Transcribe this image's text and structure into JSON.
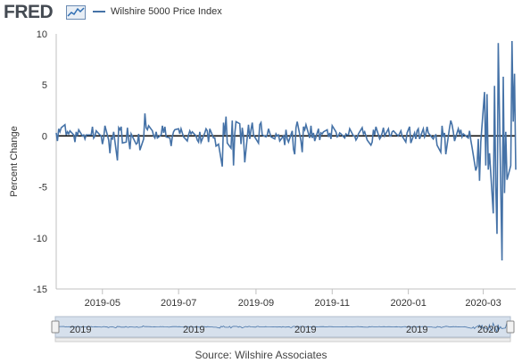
{
  "header": {
    "logo_text": "FRED",
    "logo_icon": "fred-chart-icon",
    "legend_label": "Wilshire 5000 Price Index",
    "legend_color": "#4572a7"
  },
  "source_label": "Source: Wilshire Associates",
  "chart_data": {
    "type": "line",
    "ylabel": "Percent Change",
    "ylim": [
      -15,
      10
    ],
    "y_ticks": [
      10,
      5,
      0,
      -5,
      -10,
      -15
    ],
    "x_start": "2019-03-25",
    "x_end": "2020-03-27",
    "x_ticks": [
      {
        "date": "2019-05-01",
        "label": "2019-05"
      },
      {
        "date": "2019-07-01",
        "label": "2019-07"
      },
      {
        "date": "2019-09-01",
        "label": "2019-09"
      },
      {
        "date": "2019-11-01",
        "label": "2019-11"
      },
      {
        "date": "2020-01-01",
        "label": "2020-01"
      },
      {
        "date": "2020-03-01",
        "label": "2020-03"
      }
    ],
    "navigator_labels": [
      "2019",
      "2019",
      "2019",
      "2019",
      "2020"
    ],
    "series": [
      {
        "color": "#4572a7",
        "points": [
          [
            "2019-03-25",
            0.3
          ],
          [
            "2019-03-26",
            -0.5
          ],
          [
            "2019-03-27",
            0.7
          ],
          [
            "2019-03-28",
            0.4
          ],
          [
            "2019-03-29",
            0.8
          ],
          [
            "2019-04-01",
            1.1
          ],
          [
            "2019-04-02",
            0.1
          ],
          [
            "2019-04-03",
            0.4
          ],
          [
            "2019-04-04",
            0.2
          ],
          [
            "2019-04-05",
            0.5
          ],
          [
            "2019-04-08",
            0.1
          ],
          [
            "2019-04-09",
            -0.6
          ],
          [
            "2019-04-10",
            0.4
          ],
          [
            "2019-04-11",
            0.0
          ],
          [
            "2019-04-12",
            0.6
          ],
          [
            "2019-04-15",
            0.0
          ],
          [
            "2019-04-16",
            0.1
          ],
          [
            "2019-04-17",
            -0.3
          ],
          [
            "2019-04-18",
            0.1
          ],
          [
            "2019-04-22",
            0.1
          ],
          [
            "2019-04-23",
            0.9
          ],
          [
            "2019-04-24",
            -0.2
          ],
          [
            "2019-04-25",
            0.0
          ],
          [
            "2019-04-26",
            0.5
          ],
          [
            "2019-04-29",
            0.1
          ],
          [
            "2019-04-30",
            0.0
          ],
          [
            "2019-05-01",
            -0.8
          ],
          [
            "2019-05-02",
            -0.2
          ],
          [
            "2019-05-03",
            1.0
          ],
          [
            "2019-05-06",
            -0.4
          ],
          [
            "2019-05-07",
            -1.7
          ],
          [
            "2019-05-08",
            -0.2
          ],
          [
            "2019-05-09",
            -0.3
          ],
          [
            "2019-05-10",
            0.4
          ],
          [
            "2019-05-13",
            -2.4
          ],
          [
            "2019-05-14",
            0.8
          ],
          [
            "2019-05-15",
            0.6
          ],
          [
            "2019-05-16",
            0.9
          ],
          [
            "2019-05-17",
            -0.7
          ],
          [
            "2019-05-20",
            -0.6
          ],
          [
            "2019-05-21",
            0.8
          ],
          [
            "2019-05-22",
            -0.4
          ],
          [
            "2019-05-23",
            -1.3
          ],
          [
            "2019-05-24",
            0.2
          ],
          [
            "2019-05-28",
            -0.8
          ],
          [
            "2019-05-29",
            -0.7
          ],
          [
            "2019-05-30",
            0.2
          ],
          [
            "2019-05-31",
            -1.4
          ],
          [
            "2019-06-03",
            -0.3
          ],
          [
            "2019-06-04",
            2.2
          ],
          [
            "2019-06-05",
            0.8
          ],
          [
            "2019-06-06",
            0.6
          ],
          [
            "2019-06-07",
            1.0
          ],
          [
            "2019-06-10",
            0.5
          ],
          [
            "2019-06-11",
            0.0
          ],
          [
            "2019-06-12",
            -0.2
          ],
          [
            "2019-06-13",
            0.4
          ],
          [
            "2019-06-14",
            -0.2
          ],
          [
            "2019-06-17",
            0.1
          ],
          [
            "2019-06-18",
            1.0
          ],
          [
            "2019-06-19",
            0.3
          ],
          [
            "2019-06-20",
            0.9
          ],
          [
            "2019-06-21",
            -0.1
          ],
          [
            "2019-06-24",
            -0.2
          ],
          [
            "2019-06-25",
            -1.0
          ],
          [
            "2019-06-26",
            -0.1
          ],
          [
            "2019-06-27",
            0.4
          ],
          [
            "2019-06-28",
            0.6
          ],
          [
            "2019-07-01",
            0.7
          ],
          [
            "2019-07-02",
            0.2
          ],
          [
            "2019-07-03",
            0.7
          ],
          [
            "2019-07-05",
            -0.1
          ],
          [
            "2019-07-08",
            -0.5
          ],
          [
            "2019-07-09",
            0.1
          ],
          [
            "2019-07-10",
            0.5
          ],
          [
            "2019-07-11",
            0.2
          ],
          [
            "2019-07-12",
            0.4
          ],
          [
            "2019-07-15",
            0.0
          ],
          [
            "2019-07-16",
            -0.4
          ],
          [
            "2019-07-17",
            -0.6
          ],
          [
            "2019-07-18",
            0.4
          ],
          [
            "2019-07-19",
            -0.6
          ],
          [
            "2019-07-22",
            0.3
          ],
          [
            "2019-07-23",
            0.7
          ],
          [
            "2019-07-24",
            0.5
          ],
          [
            "2019-07-25",
            -0.6
          ],
          [
            "2019-07-26",
            0.7
          ],
          [
            "2019-07-29",
            -0.2
          ],
          [
            "2019-07-30",
            -0.2
          ],
          [
            "2019-07-31",
            -1.0
          ],
          [
            "2019-08-01",
            -0.9
          ],
          [
            "2019-08-02",
            -0.8
          ],
          [
            "2019-08-05",
            -3.0
          ],
          [
            "2019-08-06",
            1.3
          ],
          [
            "2019-08-07",
            0.1
          ],
          [
            "2019-08-08",
            1.9
          ],
          [
            "2019-08-09",
            -0.7
          ],
          [
            "2019-08-12",
            -1.2
          ],
          [
            "2019-08-13",
            1.5
          ],
          [
            "2019-08-14",
            -2.9
          ],
          [
            "2019-08-15",
            0.2
          ],
          [
            "2019-08-16",
            1.4
          ],
          [
            "2019-08-19",
            1.2
          ],
          [
            "2019-08-20",
            -0.8
          ],
          [
            "2019-08-21",
            0.8
          ],
          [
            "2019-08-22",
            -0.1
          ],
          [
            "2019-08-23",
            -2.6
          ],
          [
            "2019-08-26",
            1.1
          ],
          [
            "2019-08-27",
            -0.3
          ],
          [
            "2019-08-28",
            0.6
          ],
          [
            "2019-08-29",
            1.3
          ],
          [
            "2019-08-30",
            0.1
          ],
          [
            "2019-09-03",
            -0.7
          ],
          [
            "2019-09-04",
            1.1
          ],
          [
            "2019-09-05",
            1.3
          ],
          [
            "2019-09-06",
            0.1
          ],
          [
            "2019-09-09",
            -0.1
          ],
          [
            "2019-09-10",
            0.1
          ],
          [
            "2019-09-11",
            0.7
          ],
          [
            "2019-09-12",
            0.3
          ],
          [
            "2019-09-13",
            -0.1
          ],
          [
            "2019-09-16",
            -0.3
          ],
          [
            "2019-09-17",
            0.2
          ],
          [
            "2019-09-18",
            0.0
          ],
          [
            "2019-09-19",
            0.1
          ],
          [
            "2019-09-20",
            -0.5
          ],
          [
            "2019-09-23",
            0.0
          ],
          [
            "2019-09-24",
            -0.9
          ],
          [
            "2019-09-25",
            0.6
          ],
          [
            "2019-09-26",
            -0.3
          ],
          [
            "2019-09-27",
            -0.6
          ],
          [
            "2019-09-30",
            0.5
          ],
          [
            "2019-10-01",
            -1.3
          ],
          [
            "2019-10-02",
            -1.8
          ],
          [
            "2019-10-03",
            0.8
          ],
          [
            "2019-10-04",
            1.4
          ],
          [
            "2019-10-07",
            -0.5
          ],
          [
            "2019-10-08",
            -1.6
          ],
          [
            "2019-10-09",
            0.9
          ],
          [
            "2019-10-10",
            0.6
          ],
          [
            "2019-10-11",
            1.1
          ],
          [
            "2019-10-14",
            -0.2
          ],
          [
            "2019-10-15",
            1.0
          ],
          [
            "2019-10-16",
            -0.2
          ],
          [
            "2019-10-17",
            0.3
          ],
          [
            "2019-10-18",
            -0.5
          ],
          [
            "2019-10-21",
            0.7
          ],
          [
            "2019-10-22",
            -0.4
          ],
          [
            "2019-10-23",
            0.3
          ],
          [
            "2019-10-24",
            0.2
          ],
          [
            "2019-10-25",
            0.4
          ],
          [
            "2019-10-28",
            0.6
          ],
          [
            "2019-10-29",
            -0.1
          ],
          [
            "2019-10-30",
            0.3
          ],
          [
            "2019-10-31",
            -0.3
          ],
          [
            "2019-11-01",
            1.0
          ],
          [
            "2019-11-04",
            0.4
          ],
          [
            "2019-11-05",
            -0.1
          ],
          [
            "2019-11-06",
            0.0
          ],
          [
            "2019-11-07",
            0.3
          ],
          [
            "2019-11-08",
            0.2
          ],
          [
            "2019-11-11",
            -0.2
          ],
          [
            "2019-11-12",
            0.2
          ],
          [
            "2019-11-13",
            0.1
          ],
          [
            "2019-11-14",
            0.1
          ],
          [
            "2019-11-15",
            0.7
          ],
          [
            "2019-11-18",
            0.0
          ],
          [
            "2019-11-19",
            0.0
          ],
          [
            "2019-11-20",
            -0.4
          ],
          [
            "2019-11-21",
            -0.2
          ],
          [
            "2019-11-22",
            0.2
          ],
          [
            "2019-11-25",
            0.8
          ],
          [
            "2019-11-26",
            0.2
          ],
          [
            "2019-11-27",
            0.4
          ],
          [
            "2019-11-29",
            -0.4
          ],
          [
            "2019-12-02",
            -0.9
          ],
          [
            "2019-12-03",
            -0.6
          ],
          [
            "2019-12-04",
            0.6
          ],
          [
            "2019-12-05",
            0.1
          ],
          [
            "2019-12-06",
            0.9
          ],
          [
            "2019-12-09",
            -0.3
          ],
          [
            "2019-12-10",
            -0.1
          ],
          [
            "2019-12-11",
            0.3
          ],
          [
            "2019-12-12",
            0.8
          ],
          [
            "2019-12-13",
            0.0
          ],
          [
            "2019-12-16",
            0.7
          ],
          [
            "2019-12-17",
            0.0
          ],
          [
            "2019-12-18",
            0.0
          ],
          [
            "2019-12-19",
            0.4
          ],
          [
            "2019-12-20",
            0.5
          ],
          [
            "2019-12-23",
            0.1
          ],
          [
            "2019-12-24",
            0.0
          ],
          [
            "2019-12-26",
            0.5
          ],
          [
            "2019-12-27",
            0.0
          ],
          [
            "2019-12-30",
            -0.6
          ],
          [
            "2019-12-31",
            0.3
          ],
          [
            "2020-01-02",
            0.9
          ],
          [
            "2020-01-03",
            -0.7
          ],
          [
            "2020-01-06",
            0.3
          ],
          [
            "2020-01-07",
            -0.3
          ],
          [
            "2020-01-08",
            0.5
          ],
          [
            "2020-01-09",
            0.7
          ],
          [
            "2020-01-10",
            -0.3
          ],
          [
            "2020-01-13",
            0.7
          ],
          [
            "2020-01-14",
            -0.1
          ],
          [
            "2020-01-15",
            0.2
          ],
          [
            "2020-01-16",
            0.9
          ],
          [
            "2020-01-17",
            0.3
          ],
          [
            "2020-01-21",
            -0.3
          ],
          [
            "2020-01-22",
            0.0
          ],
          [
            "2020-01-23",
            0.1
          ],
          [
            "2020-01-24",
            -0.9
          ],
          [
            "2020-01-27",
            -1.6
          ],
          [
            "2020-01-28",
            1.0
          ],
          [
            "2020-01-29",
            -0.1
          ],
          [
            "2020-01-30",
            0.3
          ],
          [
            "2020-01-31",
            -1.8
          ],
          [
            "2020-02-03",
            0.8
          ],
          [
            "2020-02-04",
            1.5
          ],
          [
            "2020-02-05",
            1.1
          ],
          [
            "2020-02-06",
            0.4
          ],
          [
            "2020-02-07",
            -0.5
          ],
          [
            "2020-02-10",
            0.7
          ],
          [
            "2020-02-11",
            0.2
          ],
          [
            "2020-02-12",
            0.6
          ],
          [
            "2020-02-13",
            -0.1
          ],
          [
            "2020-02-14",
            0.2
          ],
          [
            "2020-02-18",
            -0.2
          ],
          [
            "2020-02-19",
            0.5
          ],
          [
            "2020-02-20",
            -0.4
          ],
          [
            "2020-02-21",
            -1.1
          ],
          [
            "2020-02-24",
            -3.4
          ],
          [
            "2020-02-25",
            -3.0
          ],
          [
            "2020-02-26",
            -0.3
          ],
          [
            "2020-02-27",
            -4.4
          ],
          [
            "2020-02-28",
            -0.6
          ],
          [
            "2020-03-02",
            4.3
          ],
          [
            "2020-03-03",
            -2.9
          ],
          [
            "2020-03-04",
            4.1
          ],
          [
            "2020-03-05",
            -3.3
          ],
          [
            "2020-03-06",
            -1.7
          ],
          [
            "2020-03-09",
            -7.6
          ],
          [
            "2020-03-10",
            4.9
          ],
          [
            "2020-03-11",
            -4.9
          ],
          [
            "2020-03-12",
            -9.6
          ],
          [
            "2020-03-13",
            9.1
          ],
          [
            "2020-03-16",
            -12.2
          ],
          [
            "2020-03-17",
            5.8
          ],
          [
            "2020-03-18",
            -5.6
          ],
          [
            "2020-03-19",
            0.4
          ],
          [
            "2020-03-20",
            -4.3
          ],
          [
            "2020-03-23",
            -2.9
          ],
          [
            "2020-03-24",
            9.3
          ],
          [
            "2020-03-25",
            1.4
          ],
          [
            "2020-03-26",
            6.1
          ],
          [
            "2020-03-27",
            -3.3
          ]
        ]
      }
    ]
  }
}
